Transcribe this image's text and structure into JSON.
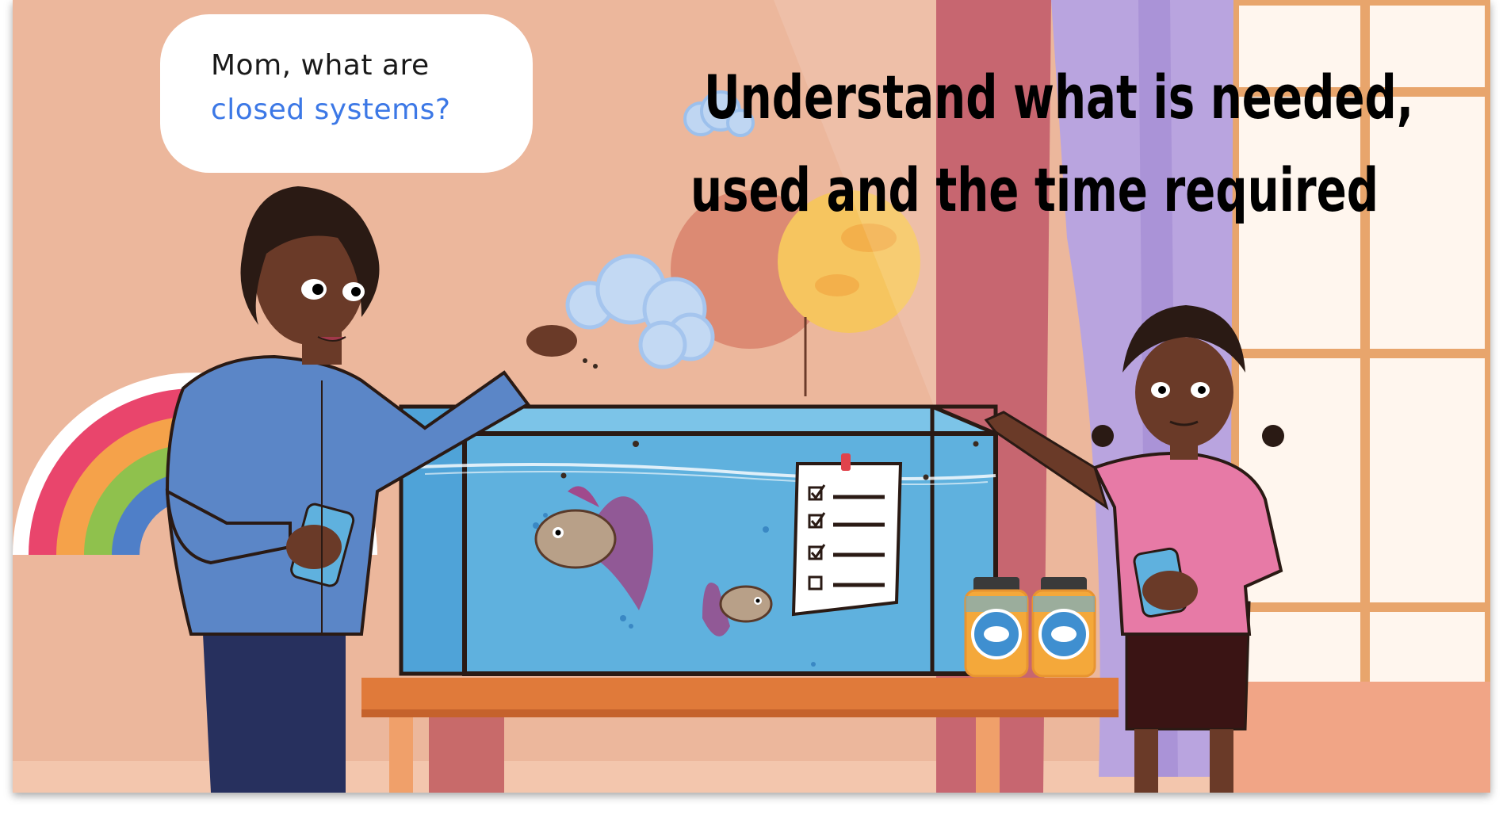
{
  "speech_bubble": {
    "line1": "Mom, what are",
    "line2": "closed systems?",
    "line2_color": "#3c78e6"
  },
  "heading": {
    "line1": "Understand what is needed,",
    "line2": "used and the time required"
  },
  "colors": {
    "wall": "#ecb79c",
    "water": "#5fb1de",
    "table": "#e07a3a",
    "curtain_pink": "#c76670",
    "curtain_purple": "#b9a4df",
    "dad_shirt": "#5b86c7",
    "girl_shirt": "#e77aa6",
    "skin": "#6a3a28"
  },
  "checklist": {
    "items_checked": [
      true,
      true,
      true,
      false
    ]
  }
}
